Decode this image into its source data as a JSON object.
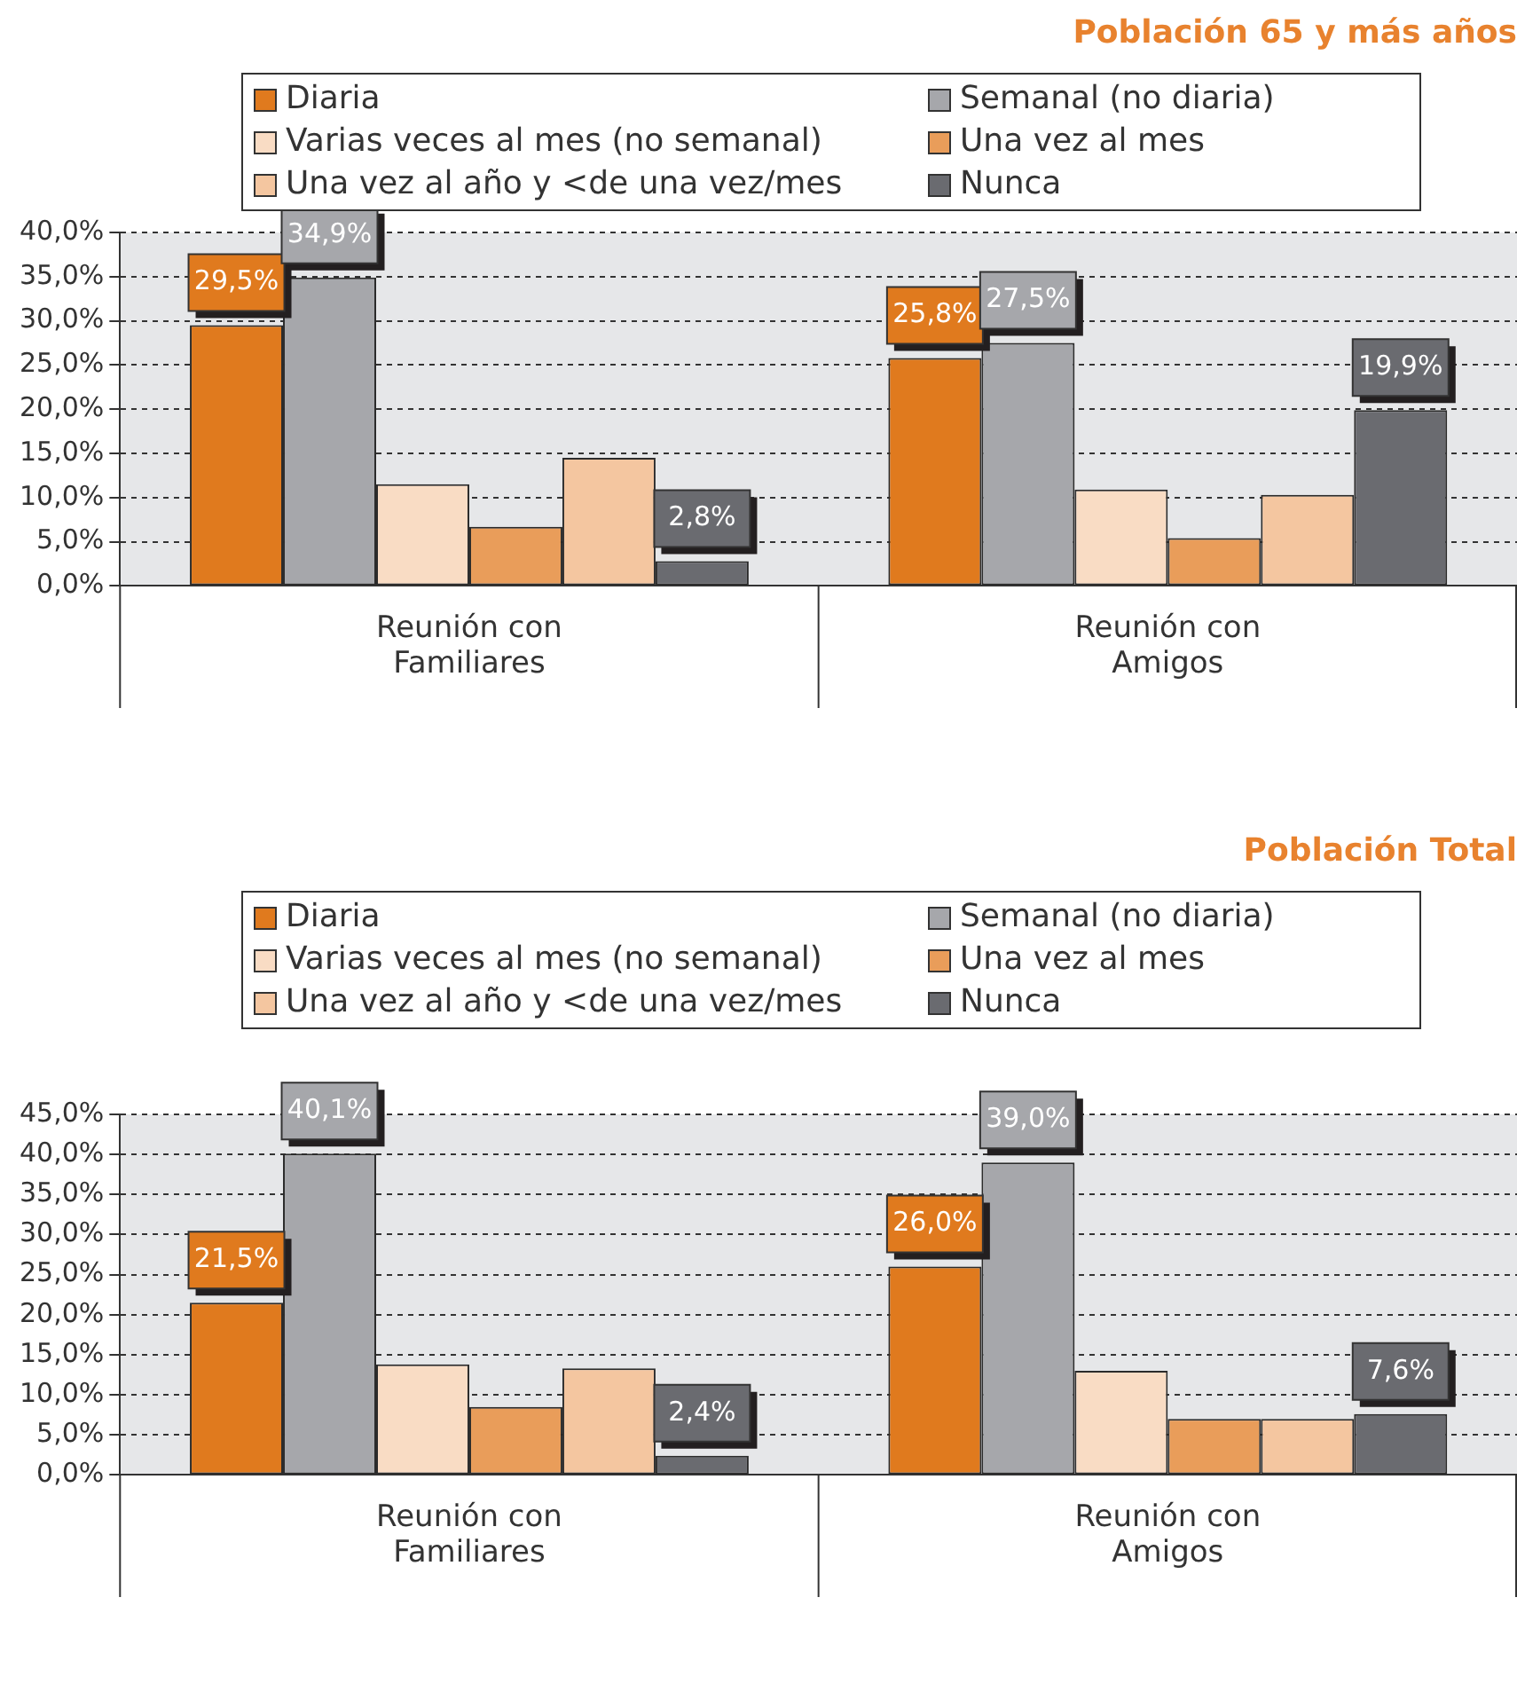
{
  "chart_data": [
    {
      "type": "bar",
      "title": "Población 65 y más años",
      "categories": [
        "Reunión con Familiares",
        "Reunión con Amigos"
      ],
      "ylim": [
        0,
        40
      ],
      "yticks": [
        {
          "value": 0,
          "label": "0,0%"
        },
        {
          "value": 5,
          "label": "5,0%"
        },
        {
          "value": 10,
          "label": "10,0%"
        },
        {
          "value": 15,
          "label": "15,0%"
        },
        {
          "value": 20,
          "label": "20,0%"
        },
        {
          "value": 25,
          "label": "25,0%"
        },
        {
          "value": 30,
          "label": "30,0%"
        },
        {
          "value": 35,
          "label": "35,0%"
        },
        {
          "value": 40,
          "label": "40,0%"
        }
      ],
      "grid": "y",
      "legend": "top",
      "series": [
        {
          "name": "Diaria",
          "color": "#e07a1e",
          "values": [
            29.5,
            25.8
          ],
          "value_labels": [
            "29,5%",
            "25,8%"
          ]
        },
        {
          "name": "Semanal (no diaria)",
          "color": "#a6a7ab",
          "values": [
            34.9,
            27.5
          ],
          "value_labels": [
            "34,9%",
            "27,5%"
          ]
        },
        {
          "name": "Varias veces al mes (no semanal)",
          "color": "#f9dcc4",
          "values": [
            11.5,
            10.9
          ],
          "value_labels": [
            null,
            null
          ]
        },
        {
          "name": "Una vez al mes",
          "color": "#e99d5a",
          "values": [
            6.7,
            5.4
          ],
          "value_labels": [
            null,
            null
          ]
        },
        {
          "name": "Una vez al año y <de una vez/mes",
          "color": "#f4c6a0",
          "values": [
            14.5,
            10.3
          ],
          "value_labels": [
            null,
            null
          ]
        },
        {
          "name": "Nunca",
          "color": "#6a6b70",
          "values": [
            2.8,
            19.9
          ],
          "value_labels": [
            "2,8%",
            "19,9%"
          ]
        }
      ]
    },
    {
      "type": "bar",
      "title": "Población Total",
      "categories": [
        "Reunión con Familiares",
        "Reunión con Amigos"
      ],
      "ylim": [
        0,
        45
      ],
      "yticks": [
        {
          "value": 0,
          "label": "0,0%"
        },
        {
          "value": 5,
          "label": "5,0%"
        },
        {
          "value": 10,
          "label": "10,0%"
        },
        {
          "value": 15,
          "label": "15,0%"
        },
        {
          "value": 20,
          "label": "20,0%"
        },
        {
          "value": 25,
          "label": "25,0%"
        },
        {
          "value": 30,
          "label": "30,0%"
        },
        {
          "value": 35,
          "label": "35,0%"
        },
        {
          "value": 40,
          "label": "40,0%"
        },
        {
          "value": 45,
          "label": "45,0%"
        }
      ],
      "grid": "y",
      "legend": "top",
      "series": [
        {
          "name": "Diaria",
          "color": "#e07a1e",
          "values": [
            21.5,
            26.0
          ],
          "value_labels": [
            "21,5%",
            "26,0%"
          ]
        },
        {
          "name": "Semanal (no diaria)",
          "color": "#a6a7ab",
          "values": [
            40.1,
            39.0
          ],
          "value_labels": [
            "40,1%",
            "39,0%"
          ]
        },
        {
          "name": "Varias veces al mes (no semanal)",
          "color": "#f9dcc4",
          "values": [
            13.8,
            13.0
          ],
          "value_labels": [
            null,
            null
          ]
        },
        {
          "name": "Una vez al mes",
          "color": "#e99d5a",
          "values": [
            8.5,
            7.0
          ],
          "value_labels": [
            null,
            null
          ]
        },
        {
          "name": "Una vez al año y <de una vez/mes",
          "color": "#f4c6a0",
          "values": [
            13.3,
            7.0
          ],
          "value_labels": [
            null,
            null
          ]
        },
        {
          "name": "Nunca",
          "color": "#6a6b70",
          "values": [
            2.4,
            7.6
          ],
          "value_labels": [
            "2,4%",
            "7,6%"
          ]
        }
      ]
    }
  ]
}
